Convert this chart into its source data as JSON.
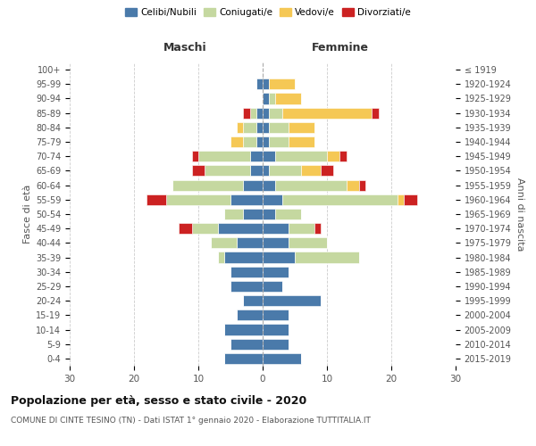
{
  "age_groups": [
    "0-4",
    "5-9",
    "10-14",
    "15-19",
    "20-24",
    "25-29",
    "30-34",
    "35-39",
    "40-44",
    "45-49",
    "50-54",
    "55-59",
    "60-64",
    "65-69",
    "70-74",
    "75-79",
    "80-84",
    "85-89",
    "90-94",
    "95-99",
    "100+"
  ],
  "birth_years": [
    "2015-2019",
    "2010-2014",
    "2005-2009",
    "2000-2004",
    "1995-1999",
    "1990-1994",
    "1985-1989",
    "1980-1984",
    "1975-1979",
    "1970-1974",
    "1965-1969",
    "1960-1964",
    "1955-1959",
    "1950-1954",
    "1945-1949",
    "1940-1944",
    "1935-1939",
    "1930-1934",
    "1925-1929",
    "1920-1924",
    "≤ 1919"
  ],
  "colors": {
    "celibi": "#4a7aaa",
    "coniugati": "#c5d8a0",
    "vedovi": "#f5c855",
    "divorziati": "#cc2222"
  },
  "maschi": {
    "celibi": [
      6,
      5,
      6,
      4,
      3,
      5,
      5,
      6,
      4,
      7,
      3,
      5,
      3,
      2,
      2,
      1,
      1,
      1,
      0,
      1,
      0
    ],
    "coniugati": [
      0,
      0,
      0,
      0,
      0,
      0,
      0,
      1,
      4,
      4,
      3,
      10,
      11,
      7,
      8,
      2,
      2,
      1,
      0,
      0,
      0
    ],
    "vedovi": [
      0,
      0,
      0,
      0,
      0,
      0,
      0,
      0,
      0,
      0,
      0,
      0,
      0,
      0,
      0,
      2,
      1,
      0,
      0,
      0,
      0
    ],
    "divorziati": [
      0,
      0,
      0,
      0,
      0,
      0,
      0,
      0,
      0,
      2,
      0,
      3,
      0,
      2,
      1,
      0,
      0,
      1,
      0,
      0,
      0
    ]
  },
  "femmine": {
    "celibi": [
      6,
      4,
      4,
      4,
      9,
      3,
      4,
      5,
      4,
      4,
      2,
      3,
      2,
      1,
      2,
      1,
      1,
      1,
      1,
      1,
      0
    ],
    "coniugati": [
      0,
      0,
      0,
      0,
      0,
      0,
      0,
      10,
      6,
      4,
      4,
      18,
      11,
      5,
      8,
      3,
      3,
      2,
      1,
      0,
      0
    ],
    "vedovi": [
      0,
      0,
      0,
      0,
      0,
      0,
      0,
      0,
      0,
      0,
      0,
      1,
      2,
      3,
      2,
      4,
      4,
      14,
      4,
      4,
      0
    ],
    "divorziati": [
      0,
      0,
      0,
      0,
      0,
      0,
      0,
      0,
      0,
      1,
      0,
      2,
      1,
      2,
      1,
      0,
      0,
      1,
      0,
      0,
      0
    ]
  },
  "xlim": 30,
  "title": "Popolazione per età, sesso e stato civile - 2020",
  "subtitle": "COMUNE DI CINTE TESINO (TN) - Dati ISTAT 1° gennaio 2020 - Elaborazione TUTTITALIA.IT",
  "ylabel_left": "Fasce di età",
  "ylabel_right": "Anni di nascita",
  "xlabel_left": "Maschi",
  "xlabel_right": "Femmine",
  "legend_labels": [
    "Celibi/Nubili",
    "Coniugati/e",
    "Vedovi/e",
    "Divorziati/e"
  ],
  "bg_color": "#ffffff",
  "grid_color": "#cccccc"
}
